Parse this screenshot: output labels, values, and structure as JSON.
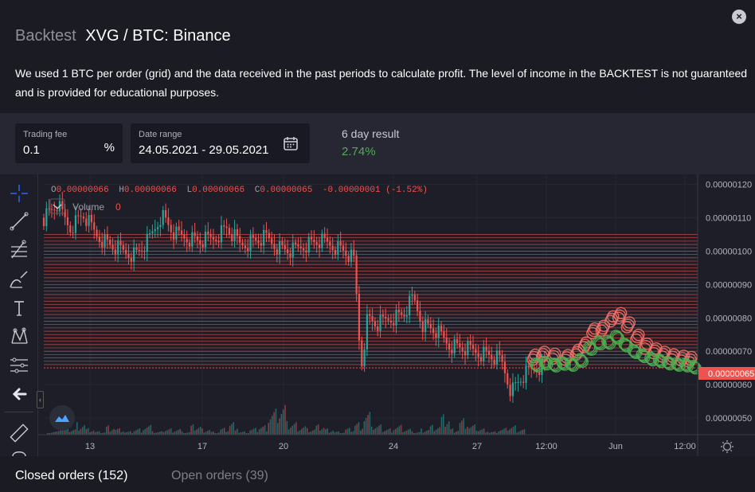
{
  "header": {
    "title_prefix": "Backtest",
    "title": "XVG / BTC: Binance",
    "description": "We used 1 BTC per order (grid) and the data received in the past periods to calculate profit. The level of income in the BACKTEST is not guaranteed and is provided for educational purposes.",
    "close_label": "×"
  },
  "controls": {
    "trading_fee": {
      "label": "Trading fee",
      "value": "0.1",
      "unit": "%"
    },
    "date_range": {
      "label": "Date range",
      "value": "24.05.2021 - 29.05.2021"
    },
    "result": {
      "label": "6 day result",
      "value": "2.74%",
      "color": "#4caf50"
    }
  },
  "chart": {
    "ohlc": {
      "o_label": "O",
      "o": "0.00000066",
      "h_label": "H",
      "h": "0.00000066",
      "l_label": "L",
      "l": "0.00000066",
      "c_label": "C",
      "c": "0.00000065",
      "change": "-0.00000001 (-1.52%)"
    },
    "volume": {
      "label": "Volume",
      "value": "0"
    },
    "price_labels": [
      "0.00000120",
      "0.00000110",
      "0.00000100",
      "0.00000090",
      "0.00000080",
      "0.00000070",
      "0.00000060",
      "0.00000050"
    ],
    "current_price": "0.00000065",
    "time_labels": [
      "13",
      "17",
      "20",
      "24",
      "27",
      "12:00",
      "Jun",
      "12:00"
    ],
    "colors": {
      "up": "#26a69a",
      "down": "#ef5350",
      "grid_line": "#d9534f",
      "buy": "#4caf50",
      "sell": "#f27066"
    }
  },
  "chart_data": {
    "type": "candlestick",
    "title": "XVG / BTC: Binance",
    "ylim": [
      4.5e-07,
      1.23e-06
    ],
    "yticks": [
      1.2e-06,
      1.1e-06,
      1e-06,
      9e-07,
      8e-07,
      7e-07,
      6e-07,
      5e-07
    ],
    "xticks": [
      "13",
      "17",
      "20",
      "24",
      "27",
      "12:00",
      "Jun",
      "12:00"
    ],
    "price_path": [
      [
        0,
        1.1
      ],
      [
        2,
        1.14
      ],
      [
        4,
        1.07
      ],
      [
        6,
        1.11
      ],
      [
        8,
        1.05
      ],
      [
        10,
        1.02
      ],
      [
        12,
        1.0
      ],
      [
        14,
        0.99
      ],
      [
        16,
        1.03
      ],
      [
        18,
        1.11
      ],
      [
        20,
        1.05
      ],
      [
        22,
        1.04
      ],
      [
        24,
        1.03
      ],
      [
        26,
        1.04
      ],
      [
        28,
        1.07
      ],
      [
        30,
        1.02
      ],
      [
        32,
        1.03
      ],
      [
        34,
        1.04
      ],
      [
        36,
        1.01
      ],
      [
        38,
        1.0
      ],
      [
        40,
        1.02
      ],
      [
        42,
        1.03
      ],
      [
        44,
        1.02
      ],
      [
        46,
        1.0
      ],
      [
        47.5,
        0.97
      ],
      [
        48.5,
        0.65
      ],
      [
        49.5,
        0.8
      ],
      [
        51,
        0.78
      ],
      [
        53,
        0.8
      ],
      [
        55,
        0.81
      ],
      [
        56.5,
        0.86
      ],
      [
        58,
        0.78
      ],
      [
        60,
        0.76
      ],
      [
        62,
        0.72
      ],
      [
        64,
        0.71
      ],
      [
        66,
        0.7
      ],
      [
        68,
        0.69
      ],
      [
        70,
        0.67
      ],
      [
        71.5,
        0.58
      ],
      [
        73,
        0.62
      ],
      [
        75,
        0.65
      ],
      [
        77,
        0.66
      ]
    ],
    "grid_levels": {
      "from": 6.6e-07,
      "to": 1.05e-06,
      "count": 40
    },
    "current_price": 6.5e-07,
    "buy_points": [
      [
        75.2,
        0.662
      ],
      [
        76.6,
        0.668
      ],
      [
        78,
        0.662
      ],
      [
        79.3,
        0.667
      ],
      [
        80.6,
        0.664
      ],
      [
        82,
        0.676
      ],
      [
        83.4,
        0.712
      ],
      [
        84.8,
        0.728
      ],
      [
        86.2,
        0.73
      ],
      [
        87.5,
        0.746
      ],
      [
        88.8,
        0.722
      ],
      [
        90.2,
        0.702
      ],
      [
        91.5,
        0.69
      ],
      [
        92.8,
        0.68
      ],
      [
        94.1,
        0.675
      ],
      [
        95.4,
        0.668
      ],
      [
        96.8,
        0.664
      ],
      [
        98.1,
        0.662
      ],
      [
        99.3,
        0.656
      ]
    ],
    "sell_points": [
      [
        74.8,
        0.675
      ],
      [
        76.2,
        0.684
      ],
      [
        77.8,
        0.678
      ],
      [
        79.8,
        0.674
      ],
      [
        81.4,
        0.69
      ],
      [
        82.6,
        0.712
      ],
      [
        83.9,
        0.754
      ],
      [
        85.3,
        0.762
      ],
      [
        86.7,
        0.79
      ],
      [
        87.9,
        0.8
      ],
      [
        89.2,
        0.772
      ],
      [
        90.6,
        0.735
      ],
      [
        91.9,
        0.708
      ],
      [
        93.3,
        0.694
      ],
      [
        94.6,
        0.684
      ],
      [
        96.0,
        0.676
      ],
      [
        97.5,
        0.672
      ],
      [
        98.7,
        0.668
      ]
    ],
    "volume_profile": [
      1,
      3,
      2,
      4,
      2,
      1,
      3,
      2,
      1,
      2,
      3,
      1,
      2,
      2,
      1,
      3,
      2,
      1,
      2,
      4,
      1,
      2,
      3,
      8,
      10,
      4,
      3,
      2,
      3,
      2,
      1,
      2,
      4,
      7,
      3,
      2,
      3,
      2,
      1,
      2,
      3,
      6,
      2,
      5,
      3,
      2,
      1,
      2,
      3,
      2
    ]
  },
  "tabs": {
    "closed": "Closed orders (152)",
    "open": "Open orders (39)"
  },
  "toolbar": {
    "tools": [
      "crosshair-icon",
      "trend-line-icon",
      "fib-icon",
      "brush-icon",
      "text-icon",
      "pattern-icon",
      "measure-icon",
      "back-arrow-icon",
      "ruler-icon"
    ],
    "colors": {
      "active": "#2962ff",
      "default": "#c9cbd1"
    }
  }
}
